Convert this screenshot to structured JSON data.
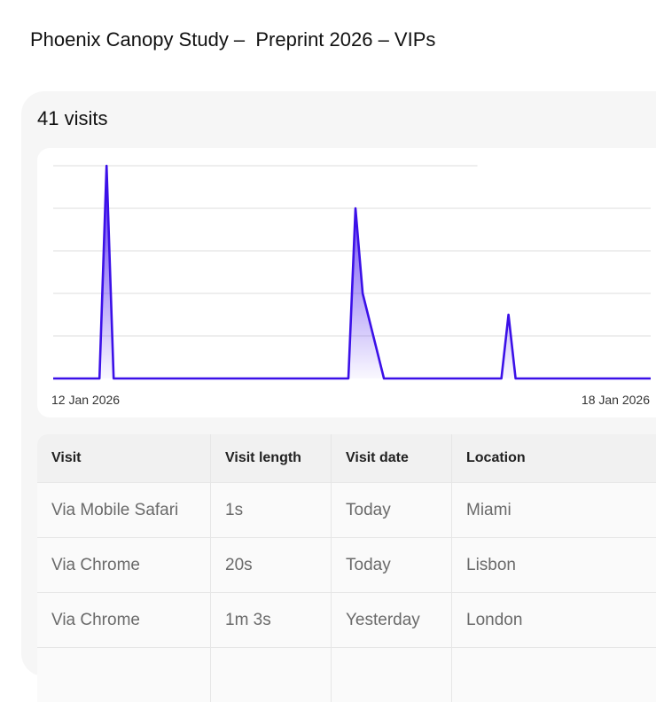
{
  "document": {
    "title": "Phoenix Canopy Study –  Preprint 2026 – VIPs"
  },
  "summary": {
    "visits_label": "41 visits"
  },
  "chart_data": {
    "type": "area",
    "title": "",
    "xlabel": "",
    "ylabel": "",
    "grid": true,
    "x_tick_labels": [
      "12 Jan 2026",
      "18 Jan 2026"
    ],
    "x": [
      0,
      0.09,
      0.1,
      0.11,
      0.2,
      0.21,
      0.3,
      0.31,
      0.32,
      0.33,
      0.36,
      0.37,
      0.38,
      0.4,
      0.45,
      0.46,
      0.47,
      0.48,
      0.49,
      0.5,
      0.6,
      0.62,
      0.67,
      0.69,
      0.7,
      0.71,
      0.72,
      0.73,
      0.74,
      0.75,
      0.76,
      0.77,
      0.78,
      0.79,
      0.8,
      1.0
    ],
    "values": [
      0,
      0,
      5,
      0,
      0,
      0,
      0,
      0,
      0,
      0,
      0,
      0,
      0,
      0,
      0,
      0,
      0,
      0,
      0,
      0,
      0,
      0,
      0,
      0,
      0,
      0,
      0,
      0,
      0,
      0,
      0,
      0,
      0,
      0,
      0,
      0
    ],
    "series": [
      {
        "points": [
          [
            "12 Jan 2026 00:00",
            0
          ],
          [
            "12 Jan 2026 13:00",
            0
          ],
          [
            "12 Jan 2026 15:00",
            5
          ],
          [
            "12 Jan 2026 17:00",
            0
          ],
          [
            "15 Jan 2026 11:00",
            0
          ],
          [
            "15 Jan 2026 13:00",
            4
          ],
          [
            "15 Jan 2026 15:00",
            2
          ],
          [
            "15 Jan 2026 21:00",
            0
          ],
          [
            "17 Jan 2026 06:00",
            0
          ],
          [
            "17 Jan 2026 08:00",
            1.5
          ],
          [
            "17 Jan 2026 10:00",
            0
          ],
          [
            "18 Jan 2026 23:59",
            0
          ]
        ]
      }
    ],
    "ylim": [
      0,
      5
    ],
    "color": "#3b10e8"
  },
  "table": {
    "headers": [
      "Visit",
      "Visit length",
      "Visit date",
      "Location"
    ],
    "rows": [
      [
        "Via Mobile Safari",
        "1s",
        "Today",
        "Miami"
      ],
      [
        "Via Chrome",
        "20s",
        "Today",
        "Lisbon"
      ],
      [
        "Via Chrome",
        "1m 3s",
        "Yesterday",
        "London"
      ]
    ]
  }
}
